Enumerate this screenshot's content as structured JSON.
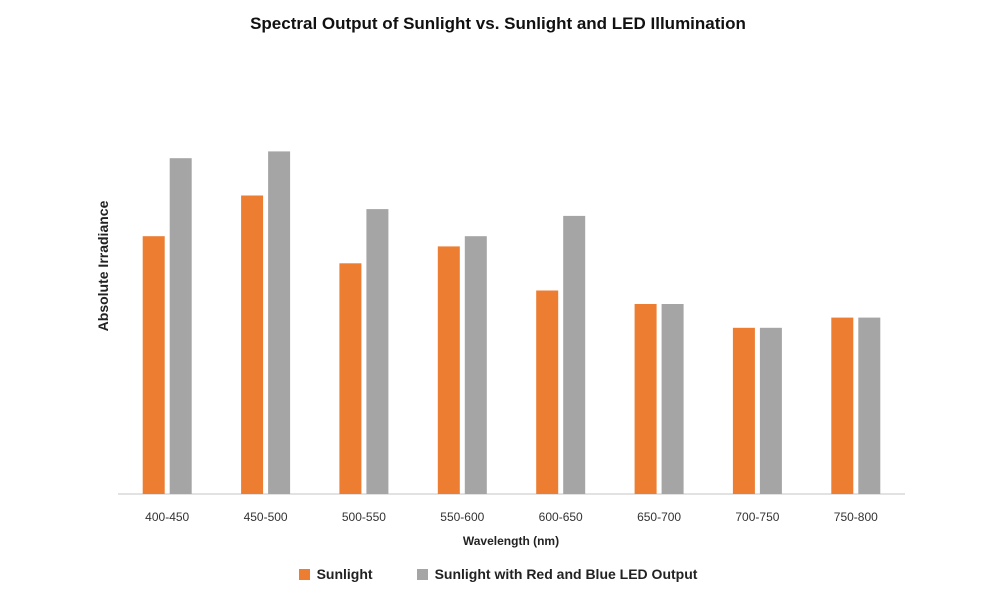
{
  "chart_data": {
    "type": "bar",
    "title": "Spectral Output of Sunlight vs. Sunlight and LED Illumination",
    "xlabel": "Wavelength (nm)",
    "ylabel": "Absolute Irradiance",
    "categories": [
      "400-450",
      "450-500",
      "500-550",
      "550-600",
      "600-650",
      "650-700",
      "700-750",
      "750-800"
    ],
    "series": [
      {
        "name": "Sunlight",
        "color": "#ED7D31",
        "values": [
          76,
          88,
          68,
          73,
          60,
          56,
          49,
          52
        ]
      },
      {
        "name": "Sunlight with Red and Blue LED Output",
        "color": "#A5A5A5",
        "values": [
          99,
          101,
          84,
          76,
          82,
          56,
          49,
          52
        ]
      }
    ],
    "ylim": [
      0,
      125
    ],
    "y_axis_visible": false,
    "grid": false,
    "legend_position": "bottom"
  }
}
